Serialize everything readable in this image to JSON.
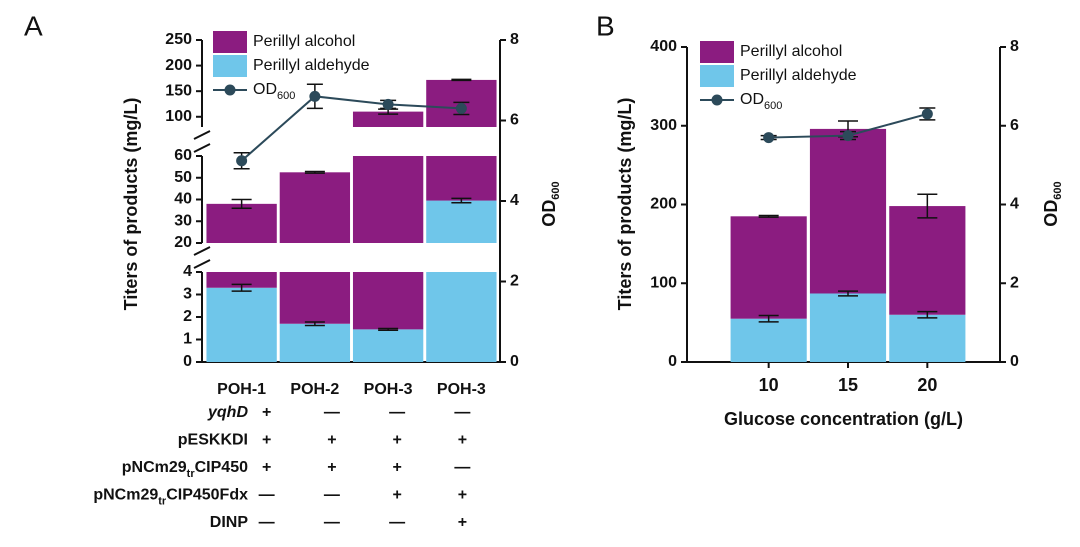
{
  "chart_data": [
    {
      "type": "bar",
      "label": "A",
      "stacked": true,
      "broken_axis": true,
      "ylabel": "Titers of products (mg/L)",
      "y2label": [
        "OD",
        "600"
      ],
      "categories": [
        "POH-1",
        "POH-2",
        "POH-3",
        "POH-3"
      ],
      "series": [
        {
          "name": "Perillyl alcohol",
          "color": "#8b1c80",
          "values": [
            34.7,
            50.8,
            108.6,
            132.5
          ],
          "errors": [
            2,
            0.4,
            5,
            1
          ]
        },
        {
          "name": "Perillyl aldehyde",
          "color": "#6fc6ea",
          "values": [
            3.3,
            1.7,
            1.45,
            39.5
          ],
          "errors": [
            0.15,
            0.08,
            0.04,
            1
          ]
        },
        {
          "name": [
            "OD",
            "600"
          ],
          "type": "line",
          "axis": "y2",
          "color": "#2c4a5a",
          "values": [
            5.0,
            6.6,
            6.4,
            6.3
          ],
          "errors": [
            0.2,
            0.3,
            0.1,
            0.15
          ]
        }
      ],
      "y_segments": [
        {
          "ylim": [
            0,
            4
          ],
          "yticks": [
            0,
            1,
            2,
            3,
            4
          ]
        },
        {
          "ylim": [
            20,
            60
          ],
          "yticks": [
            20,
            30,
            40,
            50,
            60
          ]
        },
        {
          "ylim": [
            80,
            250
          ],
          "yticks": [
            100,
            150,
            200,
            250
          ]
        }
      ],
      "y2lim": [
        0,
        8
      ],
      "y2ticks": [
        0,
        2,
        4,
        6,
        8
      ],
      "conditions": [
        {
          "label": [
            "yqhD"
          ],
          "italic": true,
          "marks": [
            "+",
            "—",
            "—",
            "—"
          ]
        },
        {
          "label": [
            "pESKKDI"
          ],
          "marks": [
            "+",
            "+",
            "+",
            "+"
          ]
        },
        {
          "label": [
            "pNCm29",
            "tr",
            "CIP450"
          ],
          "marks": [
            "+",
            "+",
            "+",
            "—"
          ]
        },
        {
          "label": [
            "pNCm29",
            "tr",
            "CIP450Fdx"
          ],
          "marks": [
            "—",
            "—",
            "+",
            "+"
          ]
        },
        {
          "label": [
            "DINP"
          ],
          "marks": [
            "—",
            "—",
            "—",
            "+"
          ]
        }
      ]
    },
    {
      "type": "bar",
      "label": "B",
      "stacked": true,
      "ylabel": "Titers of products (mg/L)",
      "y2label": [
        "OD",
        "600"
      ],
      "xlabel": "Glucose concentration (g/L)",
      "categories": [
        "10",
        "15",
        "20"
      ],
      "series": [
        {
          "name": "Perillyl alcohol",
          "color": "#8b1c80",
          "values": [
            130,
            209,
            138
          ],
          "errors": [
            1,
            10,
            15
          ]
        },
        {
          "name": "Perillyl aldehyde",
          "color": "#6fc6ea",
          "values": [
            55,
            87,
            60
          ],
          "errors": [
            4,
            3,
            4
          ]
        },
        {
          "name": [
            "OD",
            "600"
          ],
          "type": "line",
          "axis": "y2",
          "color": "#2c4a5a",
          "values": [
            5.7,
            5.75,
            6.3
          ],
          "errors": [
            0.05,
            0.1,
            0.15
          ]
        }
      ],
      "ylim": [
        0,
        400
      ],
      "yticks": [
        0,
        100,
        200,
        300,
        400
      ],
      "y2lim": [
        0,
        8
      ],
      "y2ticks": [
        0,
        2,
        4,
        6,
        8
      ]
    }
  ]
}
